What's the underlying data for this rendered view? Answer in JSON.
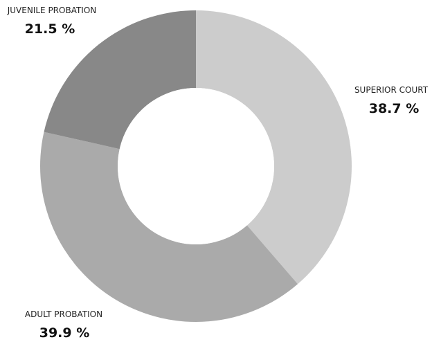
{
  "chart_data": {
    "type": "pie",
    "donut": true,
    "title": "",
    "categories": [
      "SUPERIOR COURT",
      "ADULT PROBATION",
      "JUVENILE PROBATION"
    ],
    "values": [
      38.7,
      39.9,
      21.5
    ],
    "value_labels": [
      "38.7 %",
      "39.9 %",
      "21.5 %"
    ],
    "colors": [
      "#cccccc",
      "#aaaaaa",
      "#888888"
    ],
    "legend": "none"
  }
}
